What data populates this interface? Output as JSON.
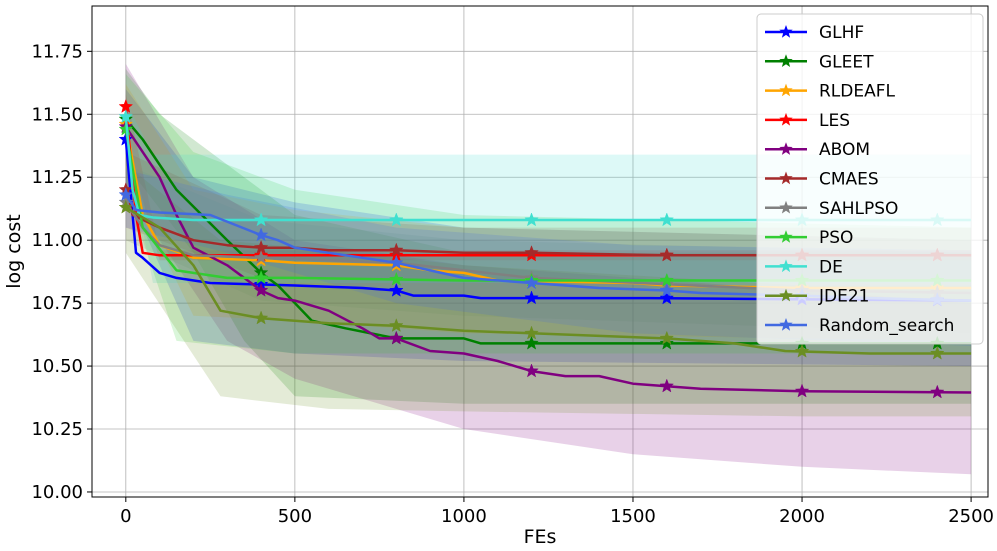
{
  "chart_data": {
    "type": "line",
    "title": "",
    "xlabel": "FEs",
    "ylabel": "log cost",
    "xlim": [
      -100,
      2550
    ],
    "ylim": [
      9.98,
      11.93
    ],
    "xticks": [
      0,
      500,
      1000,
      1500,
      2000,
      2500
    ],
    "xtick_labels": [
      "0",
      "500",
      "1000",
      "1500",
      "2000",
      "2500"
    ],
    "yticks": [
      10.0,
      10.25,
      10.5,
      10.75,
      11.0,
      11.25,
      11.5,
      11.75
    ],
    "ytick_labels": [
      "10.00",
      "10.25",
      "10.50",
      "10.75",
      "11.00",
      "11.25",
      "11.50",
      "11.75"
    ],
    "grid": true,
    "legend_position": "upper-right",
    "marker_x": [
      0,
      400,
      800,
      1200,
      1600,
      2000,
      2400
    ],
    "series": [
      {
        "name": "GLHF",
        "color": "#0000ff",
        "points": [
          [
            0,
            11.4
          ],
          [
            20,
            11.1
          ],
          [
            30,
            10.95
          ],
          [
            50,
            10.93
          ],
          [
            100,
            10.87
          ],
          [
            150,
            10.85
          ],
          [
            250,
            10.83
          ],
          [
            500,
            10.82
          ],
          [
            700,
            10.81
          ],
          [
            800,
            10.8
          ],
          [
            850,
            10.78
          ],
          [
            1000,
            10.78
          ],
          [
            1050,
            10.77
          ],
          [
            1550,
            10.77
          ],
          [
            2500,
            10.76
          ]
        ],
        "band": {
          "upper": [
            [
              0,
              11.6
            ],
            [
              200,
              11.25
            ],
            [
              500,
              11.15
            ],
            [
              1000,
              11.05
            ],
            [
              2500,
              11.0
            ]
          ],
          "lower": [
            [
              0,
              11.2
            ],
            [
              200,
              10.6
            ],
            [
              500,
              10.55
            ],
            [
              1000,
              10.52
            ],
            [
              2500,
              10.5
            ]
          ]
        }
      },
      {
        "name": "GLEET",
        "color": "#008000",
        "points": [
          [
            0,
            11.48
          ],
          [
            50,
            11.4
          ],
          [
            150,
            11.2
          ],
          [
            300,
            11.0
          ],
          [
            400,
            10.87
          ],
          [
            450,
            10.82
          ],
          [
            500,
            10.75
          ],
          [
            550,
            10.68
          ],
          [
            650,
            10.65
          ],
          [
            800,
            10.61
          ],
          [
            1000,
            10.61
          ],
          [
            1050,
            10.59
          ],
          [
            2500,
            10.59
          ]
        ],
        "band": {
          "upper": [
            [
              0,
              11.68
            ],
            [
              100,
              11.5
            ],
            [
              300,
              11.3
            ],
            [
              500,
              11.1
            ],
            [
              1000,
              10.95
            ],
            [
              2500,
              10.95
            ]
          ],
          "lower": [
            [
              0,
              11.3
            ],
            [
              200,
              10.95
            ],
            [
              350,
              10.6
            ],
            [
              500,
              10.38
            ],
            [
              1000,
              10.35
            ],
            [
              2500,
              10.35
            ]
          ]
        }
      },
      {
        "name": "RLDEAFL",
        "color": "#ffa500",
        "points": [
          [
            0,
            11.46
          ],
          [
            50,
            11.1
          ],
          [
            100,
            10.98
          ],
          [
            200,
            10.93
          ],
          [
            400,
            10.92
          ],
          [
            500,
            10.91
          ],
          [
            800,
            10.9
          ],
          [
            900,
            10.88
          ],
          [
            1000,
            10.87
          ],
          [
            1100,
            10.84
          ],
          [
            1500,
            10.83
          ],
          [
            1600,
            10.82
          ],
          [
            2000,
            10.81
          ],
          [
            2500,
            10.81
          ]
        ],
        "band": {
          "upper": [
            [
              0,
              11.62
            ],
            [
              200,
              11.2
            ],
            [
              500,
              11.12
            ],
            [
              1000,
              11.05
            ],
            [
              2500,
              11.0
            ]
          ],
          "lower": [
            [
              0,
              11.25
            ],
            [
              200,
              10.7
            ],
            [
              500,
              10.68
            ],
            [
              1000,
              10.63
            ],
            [
              2500,
              10.6
            ]
          ]
        }
      },
      {
        "name": "LES",
        "color": "#ff0000",
        "points": [
          [
            0,
            11.53
          ],
          [
            30,
            11.1
          ],
          [
            50,
            10.95
          ],
          [
            100,
            10.94
          ],
          [
            400,
            10.94
          ],
          [
            1000,
            10.94
          ],
          [
            2500,
            10.94
          ]
        ],
        "band": {
          "upper": [
            [
              0,
              11.58
            ],
            [
              100,
              10.96
            ],
            [
              2500,
              10.96
            ]
          ],
          "lower": [
            [
              0,
              11.4
            ],
            [
              100,
              10.92
            ],
            [
              2500,
              10.92
            ]
          ]
        }
      },
      {
        "name": "ABOM",
        "color": "#800080",
        "points": [
          [
            0,
            11.45
          ],
          [
            100,
            11.25
          ],
          [
            150,
            11.1
          ],
          [
            200,
            10.97
          ],
          [
            300,
            10.9
          ],
          [
            400,
            10.8
          ],
          [
            450,
            10.77
          ],
          [
            500,
            10.76
          ],
          [
            600,
            10.72
          ],
          [
            700,
            10.65
          ],
          [
            750,
            10.61
          ],
          [
            800,
            10.61
          ],
          [
            900,
            10.56
          ],
          [
            1000,
            10.55
          ],
          [
            1100,
            10.52
          ],
          [
            1200,
            10.48
          ],
          [
            1300,
            10.46
          ],
          [
            1400,
            10.46
          ],
          [
            1500,
            10.43
          ],
          [
            1600,
            10.42
          ],
          [
            1700,
            10.41
          ],
          [
            2000,
            10.4
          ],
          [
            2500,
            10.395
          ]
        ],
        "band": {
          "upper": [
            [
              0,
              11.7
            ],
            [
              200,
              11.25
            ],
            [
              500,
              11.0
            ],
            [
              1000,
              10.9
            ],
            [
              2000,
              10.8
            ],
            [
              2500,
              10.75
            ]
          ],
          "lower": [
            [
              0,
              11.2
            ],
            [
              300,
              10.6
            ],
            [
              500,
              10.45
            ],
            [
              1000,
              10.25
            ],
            [
              1500,
              10.15
            ],
            [
              2000,
              10.1
            ],
            [
              2500,
              10.07
            ]
          ]
        }
      },
      {
        "name": "CMAES",
        "color": "#a52a2a",
        "points": [
          [
            0,
            11.2
          ],
          [
            20,
            11.1
          ],
          [
            100,
            11.05
          ],
          [
            200,
            11.0
          ],
          [
            300,
            10.98
          ],
          [
            400,
            10.97
          ],
          [
            500,
            10.97
          ],
          [
            600,
            10.96
          ],
          [
            700,
            10.96
          ],
          [
            800,
            10.96
          ],
          [
            1000,
            10.95
          ],
          [
            1200,
            10.95
          ],
          [
            1600,
            10.94
          ],
          [
            2500,
            10.94
          ]
        ],
        "band": {
          "upper": [
            [
              0,
              11.35
            ],
            [
              400,
              11.1
            ],
            [
              1000,
              11.05
            ],
            [
              2500,
              11.05
            ]
          ],
          "lower": [
            [
              0,
              11.05
            ],
            [
              400,
              10.85
            ],
            [
              1000,
              10.84
            ],
            [
              2500,
              10.84
            ]
          ]
        }
      },
      {
        "name": "SAHLPSO",
        "color": "#808080",
        "points": [
          [
            0,
            11.15
          ],
          [
            50,
            11.05
          ],
          [
            100,
            10.98
          ],
          [
            200,
            10.94
          ],
          [
            400,
            10.93
          ],
          [
            800,
            10.91
          ],
          [
            1200,
            10.85
          ],
          [
            2000,
            10.8
          ],
          [
            2500,
            10.79
          ]
        ],
        "band": {
          "upper": [
            [
              0,
              11.3
            ],
            [
              400,
              11.08
            ],
            [
              1000,
              11.0
            ],
            [
              2500,
              10.95
            ]
          ],
          "lower": [
            [
              0,
              11.0
            ],
            [
              400,
              10.76
            ],
            [
              1000,
              10.7
            ],
            [
              2500,
              10.63
            ]
          ]
        }
      },
      {
        "name": "PSO",
        "color": "#32cd32",
        "points": [
          [
            0,
            11.44
          ],
          [
            50,
            11.05
          ],
          [
            150,
            10.88
          ],
          [
            300,
            10.85
          ],
          [
            500,
            10.85
          ],
          [
            1000,
            10.84
          ],
          [
            2000,
            10.84
          ],
          [
            2500,
            10.84
          ]
        ],
        "band": {
          "upper": [
            [
              0,
              11.66
            ],
            [
              200,
              11.35
            ],
            [
              500,
              11.2
            ],
            [
              1000,
              11.1
            ],
            [
              2500,
              11.05
            ]
          ],
          "lower": [
            [
              0,
              11.2
            ],
            [
              150,
              10.6
            ],
            [
              500,
              10.55
            ],
            [
              1000,
              10.55
            ],
            [
              2500,
              10.55
            ]
          ]
        }
      },
      {
        "name": "DE",
        "color": "#40e0d0",
        "points": [
          [
            0,
            11.49
          ],
          [
            20,
            11.2
          ],
          [
            40,
            11.1
          ],
          [
            80,
            11.09
          ],
          [
            200,
            11.08
          ],
          [
            400,
            11.08
          ],
          [
            2500,
            11.08
          ]
        ],
        "band": {
          "upper": [
            [
              0,
              11.55
            ],
            [
              80,
              11.34
            ],
            [
              2500,
              11.34
            ]
          ],
          "lower": [
            [
              0,
              11.4
            ],
            [
              80,
              10.83
            ],
            [
              2500,
              10.83
            ]
          ]
        }
      },
      {
        "name": "JDE21",
        "color": "#6b8e23",
        "points": [
          [
            0,
            11.13
          ],
          [
            100,
            11.05
          ],
          [
            200,
            10.9
          ],
          [
            280,
            10.72
          ],
          [
            400,
            10.69
          ],
          [
            600,
            10.67
          ],
          [
            800,
            10.66
          ],
          [
            1000,
            10.64
          ],
          [
            1200,
            10.63
          ],
          [
            1400,
            10.62
          ],
          [
            1600,
            10.61
          ],
          [
            1800,
            10.59
          ],
          [
            1950,
            10.56
          ],
          [
            2200,
            10.55
          ],
          [
            2500,
            10.55
          ]
        ],
        "band": {
          "upper": [
            [
              0,
              11.3
            ],
            [
              280,
              11.0
            ],
            [
              600,
              10.96
            ],
            [
              1000,
              10.9
            ],
            [
              2000,
              10.82
            ],
            [
              2500,
              10.82
            ]
          ],
          "lower": [
            [
              0,
              10.95
            ],
            [
              280,
              10.38
            ],
            [
              600,
              10.33
            ],
            [
              1000,
              10.32
            ],
            [
              2000,
              10.3
            ],
            [
              2500,
              10.3
            ]
          ]
        }
      },
      {
        "name": "Random_search",
        "color": "#4169e1",
        "points": [
          [
            0,
            11.18
          ],
          [
            30,
            11.12
          ],
          [
            100,
            11.11
          ],
          [
            250,
            11.1
          ],
          [
            400,
            11.02
          ],
          [
            450,
            11.0
          ],
          [
            500,
            10.97
          ],
          [
            600,
            10.95
          ],
          [
            700,
            10.93
          ],
          [
            800,
            10.91
          ],
          [
            900,
            10.88
          ],
          [
            1000,
            10.85
          ],
          [
            1200,
            10.83
          ],
          [
            1300,
            10.82
          ],
          [
            1400,
            10.81
          ],
          [
            1600,
            10.8
          ],
          [
            1700,
            10.79
          ],
          [
            2000,
            10.78
          ],
          [
            2200,
            10.77
          ],
          [
            2500,
            10.76
          ]
        ],
        "band": {
          "upper": [
            [
              0,
              11.28
            ],
            [
              300,
              11.18
            ],
            [
              800,
              11.05
            ],
            [
              1500,
              10.98
            ],
            [
              2500,
              10.96
            ]
          ],
          "lower": [
            [
              0,
              11.05
            ],
            [
              300,
              10.95
            ],
            [
              800,
              10.75
            ],
            [
              1500,
              10.63
            ],
            [
              2500,
              10.58
            ]
          ]
        }
      }
    ]
  }
}
